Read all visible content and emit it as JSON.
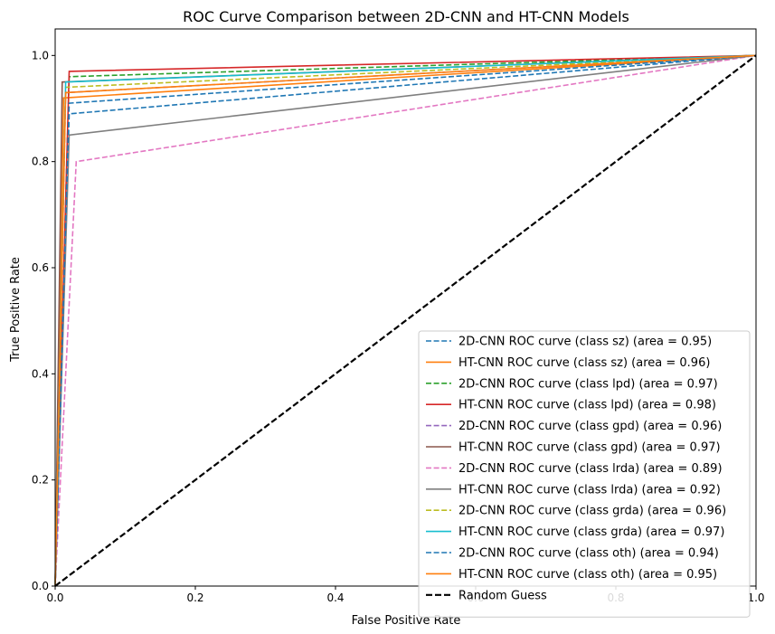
{
  "chart_data": {
    "type": "line",
    "title": "ROC Curve Comparison between 2D-CNN and HT-CNN Models",
    "xlabel": "False Positive Rate",
    "ylabel": "True Positive Rate",
    "xlim": [
      0,
      1
    ],
    "ylim": [
      0,
      1.05
    ],
    "x_ticks": [
      "0.0",
      "0.2",
      "0.4",
      "0.6",
      "0.8",
      "1.0"
    ],
    "y_ticks": [
      "0.0",
      "0.2",
      "0.4",
      "0.6",
      "0.8",
      "1.0"
    ],
    "grid": false,
    "legend_position": "lower-right",
    "series": [
      {
        "name": "2D-CNN ROC curve (class sz) (area = 0.95)",
        "color": "#1f77b4",
        "dash": "dashed",
        "points": [
          [
            0,
            0
          ],
          [
            0.02,
            0.89
          ],
          [
            1,
            1
          ]
        ]
      },
      {
        "name": "HT-CNN ROC curve (class sz) (area = 0.96)",
        "color": "#ff7f0e",
        "dash": "solid",
        "points": [
          [
            0,
            0
          ],
          [
            0.012,
            0.92
          ],
          [
            1,
            1
          ]
        ]
      },
      {
        "name": "2D-CNN ROC curve (class lpd) (area = 0.97)",
        "color": "#2ca02c",
        "dash": "dashed",
        "points": [
          [
            0,
            0
          ],
          [
            0.02,
            0.96
          ],
          [
            1,
            1
          ]
        ]
      },
      {
        "name": "HT-CNN ROC curve (class lpd) (area = 0.98)",
        "color": "#d62728",
        "dash": "solid",
        "points": [
          [
            0,
            0
          ],
          [
            0.02,
            0.97
          ],
          [
            1,
            1
          ]
        ]
      },
      {
        "name": "2D-CNN ROC curve (class gpd) (area = 0.96)",
        "color": "#9467bd",
        "dash": "dashed",
        "points": [
          [
            0,
            0
          ],
          [
            0.015,
            0.93
          ],
          [
            1,
            1
          ]
        ]
      },
      {
        "name": "HT-CNN ROC curve (class gpd) (area = 0.97)",
        "color": "#8c564b",
        "dash": "solid",
        "points": [
          [
            0,
            0
          ],
          [
            0.01,
            0.95
          ],
          [
            1,
            1
          ]
        ]
      },
      {
        "name": "2D-CNN ROC curve (class lrda) (area = 0.89)",
        "color": "#e377c2",
        "dash": "dashed",
        "points": [
          [
            0,
            0
          ],
          [
            0.03,
            0.8
          ],
          [
            1,
            1
          ]
        ]
      },
      {
        "name": "HT-CNN ROC curve (class lrda) (area = 0.92)",
        "color": "#7f7f7f",
        "dash": "solid",
        "points": [
          [
            0,
            0
          ],
          [
            0.02,
            0.85
          ],
          [
            1,
            1
          ]
        ]
      },
      {
        "name": "2D-CNN ROC curve (class grda) (area = 0.96)",
        "color": "#bcbd22",
        "dash": "dashed",
        "points": [
          [
            0,
            0
          ],
          [
            0.015,
            0.94
          ],
          [
            1,
            1
          ]
        ]
      },
      {
        "name": "HT-CNN ROC curve (class grda) (area = 0.97)",
        "color": "#17becf",
        "dash": "solid",
        "points": [
          [
            0,
            0
          ],
          [
            0.015,
            0.95
          ],
          [
            1,
            1
          ]
        ]
      },
      {
        "name": "2D-CNN ROC curve (class oth) (area = 0.94)",
        "color": "#1f77b4",
        "dash": "dashed",
        "points": [
          [
            0,
            0
          ],
          [
            0.02,
            0.91
          ],
          [
            1,
            1
          ]
        ]
      },
      {
        "name": "HT-CNN ROC curve (class oth) (area = 0.95)",
        "color": "#ff7f0e",
        "dash": "solid",
        "points": [
          [
            0,
            0
          ],
          [
            0.015,
            0.93
          ],
          [
            1,
            1
          ]
        ]
      },
      {
        "name": "Random Guess",
        "color": "#000000",
        "dash": "dashed-bold",
        "points": [
          [
            0,
            0
          ],
          [
            1,
            1
          ]
        ]
      }
    ]
  }
}
